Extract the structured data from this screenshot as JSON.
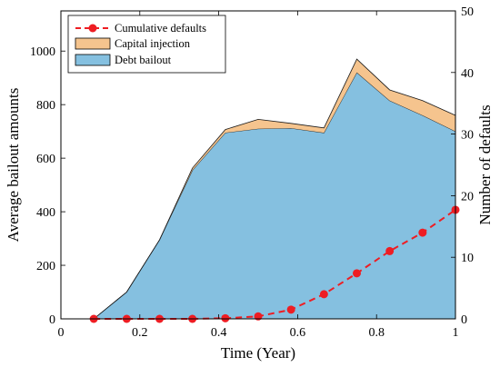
{
  "chart_data": {
    "type": "area",
    "xlabel": "Time (Year)",
    "ylabel_left": "Average bailout amounts",
    "ylabel_right": "Number of defaults",
    "xlim": [
      0,
      1
    ],
    "ylim_left": [
      0,
      1150
    ],
    "ylim_right": [
      0,
      50
    ],
    "xticks": [
      "0",
      "0.2",
      "0.4",
      "0.6",
      "0.8",
      "1"
    ],
    "xtick_values": [
      0,
      0.2,
      0.4,
      0.6,
      0.8,
      1
    ],
    "yticks_left": [
      "0",
      "200",
      "400",
      "600",
      "800",
      "1000"
    ],
    "ytick_values_left": [
      0,
      200,
      400,
      600,
      800,
      1000
    ],
    "yticks_right": [
      "0",
      "10",
      "20",
      "30",
      "40",
      "50"
    ],
    "ytick_values_right": [
      0,
      10,
      20,
      30,
      40,
      50
    ],
    "legend_position": "top-left",
    "x": [
      0.0833,
      0.1667,
      0.25,
      0.3333,
      0.4167,
      0.5,
      0.5833,
      0.6667,
      0.75,
      0.8333,
      0.9167,
      1.0
    ],
    "series": [
      {
        "name": "Debt bailout",
        "axis": "left",
        "kind": "stacked-area",
        "color": "#85c0e0",
        "values": [
          0,
          100,
          295,
          555,
          695,
          710,
          712,
          695,
          920,
          815,
          760,
          700
        ]
      },
      {
        "name": "Capital injection",
        "axis": "left",
        "kind": "stacked-area",
        "color": "#f5c48e",
        "values": [
          0,
          0,
          0,
          8,
          12,
          35,
          18,
          18,
          50,
          40,
          55,
          60
        ]
      },
      {
        "name": "Cumulative defaults",
        "axis": "right",
        "kind": "dashed-line-markers",
        "color": "#ee1d23",
        "values": [
          0,
          0,
          0,
          0,
          0.1,
          0.4,
          1.5,
          4.0,
          7.4,
          11.0,
          14.0,
          17.7
        ]
      }
    ],
    "legend": [
      "Cumulative defaults",
      "Capital injection",
      "Debt bailout"
    ]
  }
}
